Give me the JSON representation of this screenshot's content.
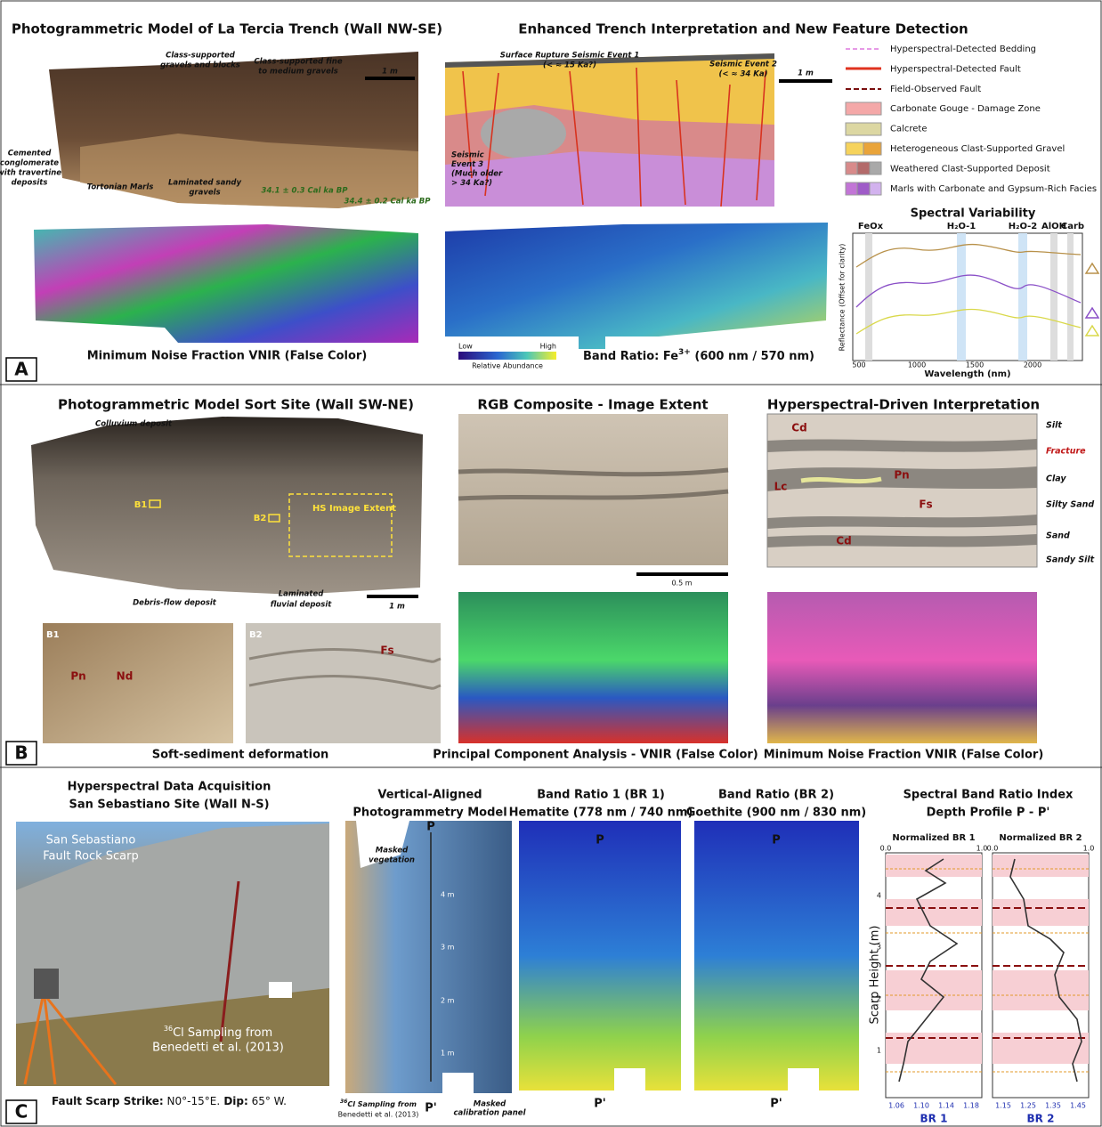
{
  "panel_a": {
    "label": "A",
    "photo_title": "Photogrammetric Model of La Tercia Trench (Wall NW-SE)",
    "interp_title": "Enhanced Trench Interpretation and New Feature Detection",
    "photo_notes": [
      [
        "Class-supported",
        "gravels and blocks"
      ],
      [
        "Class-supported fine",
        "to medium gravels"
      ],
      "1 m",
      [
        "Cemented",
        "conglomerate",
        "with travertine",
        "deposits"
      ],
      "Tortonian Marls",
      [
        "Laminated sandy",
        "gravels"
      ],
      "34.1 ± 0.3 Cal ka BP",
      "34.4 ± 0.2 Cal ka BP"
    ],
    "interp_notes": [
      "Surface Rupture Seismic Event 1",
      "(< ≈ 15 Ka?)",
      "Seismic Event 2",
      "(< ≈ 34 Ka)",
      "1 m",
      [
        "Seismic",
        "Event 3",
        "(Much older",
        "> 34 Ka?)"
      ]
    ],
    "legend": [
      "Hyperspectral-Detected Bedding",
      "Hyperspectral-Detected Fault",
      "Field-Observed Fault",
      "Carbonate Gouge - Damage Zone",
      "Calcrete",
      "Heterogeneous Clast-Supported Gravel",
      "Weathered Clast-Supported Deposit",
      "Marls with Carbonate and Gypsum-Rich Facies"
    ],
    "mnf_caption": "Minimum Noise Fraction  VNIR (False Color)",
    "colorbar": {
      "low": "Low",
      "high": "High",
      "label": "Relative Abundance"
    },
    "ratio_caption": [
      "Band Ratio: Fe",
      "3+",
      " (600 nm / 570 nm)"
    ],
    "spectral": {
      "title": "Spectral Variability",
      "bands": [
        "FeOx",
        "H₂O-1",
        "H₂O-2",
        "AlOH",
        "Carb"
      ],
      "y_label": "Reflectance (Offset for clarity)",
      "x_label": "Wavelength (nm)",
      "x_ticks": [
        "500",
        "1000",
        "1500",
        "2000"
      ]
    }
  },
  "panel_b": {
    "label": "B",
    "photo_title": "Photogrammetric Model Sort Site (Wall SW-NE)",
    "photo_notes": [
      "Colluvium deposit",
      "B1",
      "B2",
      "HS  Image Extent",
      "Debris-flow deposit",
      [
        "Laminated",
        "fluvial deposit"
      ],
      "1 m"
    ],
    "inset_b1": [
      "B1",
      "Pn",
      "Nd"
    ],
    "inset_b2": [
      "B2",
      "Fs"
    ],
    "inset_caption": "Soft-sediment deformation",
    "rgb_title": "RGB Composite - Image Extent",
    "scale": "0.5 m",
    "pca_caption": "Principal Component Analysis - VNIR (False Color)",
    "interp_title": "Hyperspectral-Driven Interpretation",
    "interp_labels": [
      "Cd",
      "Pn",
      "Lc",
      "Fs",
      "Cd"
    ],
    "units": [
      "Silt",
      "Fracture",
      "Clay",
      "Silty Sand",
      "Sand",
      "Sandy Silt"
    ],
    "mnf_caption": "Minimum Noise Fraction  VNIR (False Color)"
  },
  "panel_c": {
    "label": "C",
    "acq_title": [
      "Hyperspectral Data Acquisition",
      "San Sebastiano Site (Wall N-S)"
    ],
    "scarp_label": [
      "San Sebastiano",
      "Fault Rock Scarp"
    ],
    "sampling": [
      "36",
      "Cl Sampling from",
      "Benedetti et al. (2013)"
    ],
    "strike": [
      "Fault Scarp Strike:",
      " N0°-15°E.",
      " Dip:",
      " 65° W."
    ],
    "model_title": [
      "Vertical-Aligned",
      "Photogrammetry Model"
    ],
    "model_notes": [
      [
        "Masked",
        "vegetation"
      ],
      "P",
      "4 m",
      "3 m",
      "2 m",
      "1 m",
      "P'",
      [
        "36",
        "Cl Sampling from",
        "Benedetti et al. (2013)"
      ],
      [
        "Masked",
        "calibration panel"
      ]
    ],
    "br1_title": [
      "Band Ratio 1 (BR 1)",
      "Hematite (778 nm / 740 nm)"
    ],
    "br1_marks": [
      "P",
      "P'"
    ],
    "br2_title": [
      "Band Ratio (BR 2)",
      "Goethite (900 nm / 830 nm)"
    ],
    "br2_marks": [
      "P",
      "P'"
    ],
    "profile": {
      "title": [
        "Spectral Band Ratio Index",
        "Depth Profile P - P'"
      ],
      "y_label": "Scarp Height (m)",
      "y_ticks": [
        "1",
        "2",
        "3",
        "4"
      ],
      "br1": {
        "heading": "Normalized BR 1",
        "top_ticks": [
          "0.0",
          "1.0"
        ],
        "bottom_ticks": [
          "1.06",
          "1.10",
          "1.14",
          "1.18"
        ],
        "axis_label": "BR 1"
      },
      "br2": {
        "heading": "Normalized BR 2",
        "top_ticks": [
          "0.0",
          "1.0"
        ],
        "bottom_ticks": [
          "1.15",
          "1.25",
          "1.35",
          "1.45"
        ],
        "axis_label": "BR 2"
      }
    }
  }
}
